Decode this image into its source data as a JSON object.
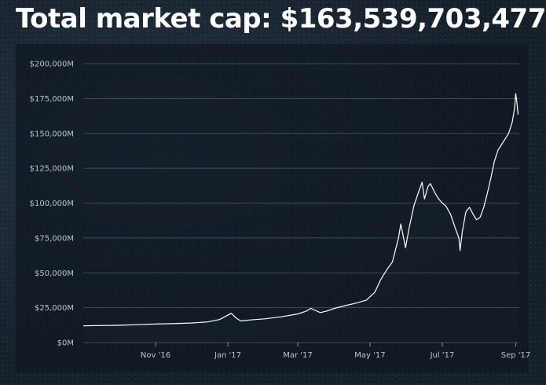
{
  "header": {
    "title": "Total market cap: $163,539,703,477"
  },
  "chart_data": {
    "type": "area",
    "title": "Total market cap: $163,539,703,477",
    "xlabel": "",
    "ylabel": "",
    "unit": "M USD",
    "x_range": [
      "2016-09-01",
      "2017-09-04"
    ],
    "ylim": [
      0,
      200000
    ],
    "grid": true,
    "y_ticks": [
      {
        "value": 0,
        "label": "$0M"
      },
      {
        "value": 25000,
        "label": "$25,000M"
      },
      {
        "value": 50000,
        "label": "$50,000M"
      },
      {
        "value": 75000,
        "label": "$75,000M"
      },
      {
        "value": 100000,
        "label": "$100,000M"
      },
      {
        "value": 125000,
        "label": "$125,000M"
      },
      {
        "value": 150000,
        "label": "$150,000M"
      },
      {
        "value": 175000,
        "label": "$175,000M"
      },
      {
        "value": 200000,
        "label": "$200,000M"
      }
    ],
    "x_ticks": [
      {
        "date": "2016-11-01",
        "label": "Nov '16"
      },
      {
        "date": "2017-01-01",
        "label": "Jan '17"
      },
      {
        "date": "2017-03-01",
        "label": "Mar '17"
      },
      {
        "date": "2017-05-01",
        "label": "May '17"
      },
      {
        "date": "2017-07-01",
        "label": "Jul '17"
      },
      {
        "date": "2017-09-01",
        "label": "Sep '17"
      }
    ],
    "series": [
      {
        "points": [
          [
            "2016-09-01",
            12000
          ],
          [
            "2016-09-15",
            12200
          ],
          [
            "2016-10-01",
            12400
          ],
          [
            "2016-10-15",
            12800
          ],
          [
            "2016-11-01",
            13300
          ],
          [
            "2016-11-15",
            13600
          ],
          [
            "2016-12-01",
            14000
          ],
          [
            "2016-12-15",
            14800
          ],
          [
            "2016-12-25",
            16500
          ],
          [
            "2017-01-04",
            21000
          ],
          [
            "2017-01-08",
            17500
          ],
          [
            "2017-01-12",
            15500
          ],
          [
            "2017-01-20",
            16200
          ],
          [
            "2017-02-01",
            17000
          ],
          [
            "2017-02-15",
            18500
          ],
          [
            "2017-03-01",
            20500
          ],
          [
            "2017-03-08",
            22500
          ],
          [
            "2017-03-12",
            24500
          ],
          [
            "2017-03-20",
            21500
          ],
          [
            "2017-03-25",
            22500
          ],
          [
            "2017-04-01",
            24500
          ],
          [
            "2017-04-10",
            26500
          ],
          [
            "2017-04-20",
            28500
          ],
          [
            "2017-04-28",
            30500
          ],
          [
            "2017-05-05",
            36000
          ],
          [
            "2017-05-10",
            45000
          ],
          [
            "2017-05-15",
            52000
          ],
          [
            "2017-05-20",
            58000
          ],
          [
            "2017-05-25",
            75000
          ],
          [
            "2017-05-27",
            85000
          ],
          [
            "2017-05-31",
            68000
          ],
          [
            "2017-06-03",
            82000
          ],
          [
            "2017-06-07",
            98000
          ],
          [
            "2017-06-11",
            108000
          ],
          [
            "2017-06-14",
            115000
          ],
          [
            "2017-06-16",
            103000
          ],
          [
            "2017-06-19",
            112000
          ],
          [
            "2017-06-21",
            114000
          ],
          [
            "2017-06-25",
            107000
          ],
          [
            "2017-06-28",
            103000
          ],
          [
            "2017-07-01",
            100000
          ],
          [
            "2017-07-04",
            98000
          ],
          [
            "2017-07-08",
            92000
          ],
          [
            "2017-07-12",
            82000
          ],
          [
            "2017-07-15",
            75000
          ],
          [
            "2017-07-16",
            66000
          ],
          [
            "2017-07-18",
            80000
          ],
          [
            "2017-07-21",
            94000
          ],
          [
            "2017-07-24",
            97000
          ],
          [
            "2017-07-27",
            92000
          ],
          [
            "2017-07-30",
            88000
          ],
          [
            "2017-08-02",
            90000
          ],
          [
            "2017-08-05",
            97000
          ],
          [
            "2017-08-08",
            107000
          ],
          [
            "2017-08-11",
            118000
          ],
          [
            "2017-08-14",
            130000
          ],
          [
            "2017-08-17",
            138000
          ],
          [
            "2017-08-20",
            142000
          ],
          [
            "2017-08-23",
            146000
          ],
          [
            "2017-08-26",
            150000
          ],
          [
            "2017-08-29",
            158000
          ],
          [
            "2017-08-31",
            168000
          ],
          [
            "2017-09-01",
            178500
          ],
          [
            "2017-09-02",
            172000
          ],
          [
            "2017-09-03",
            163500
          ]
        ]
      }
    ]
  }
}
